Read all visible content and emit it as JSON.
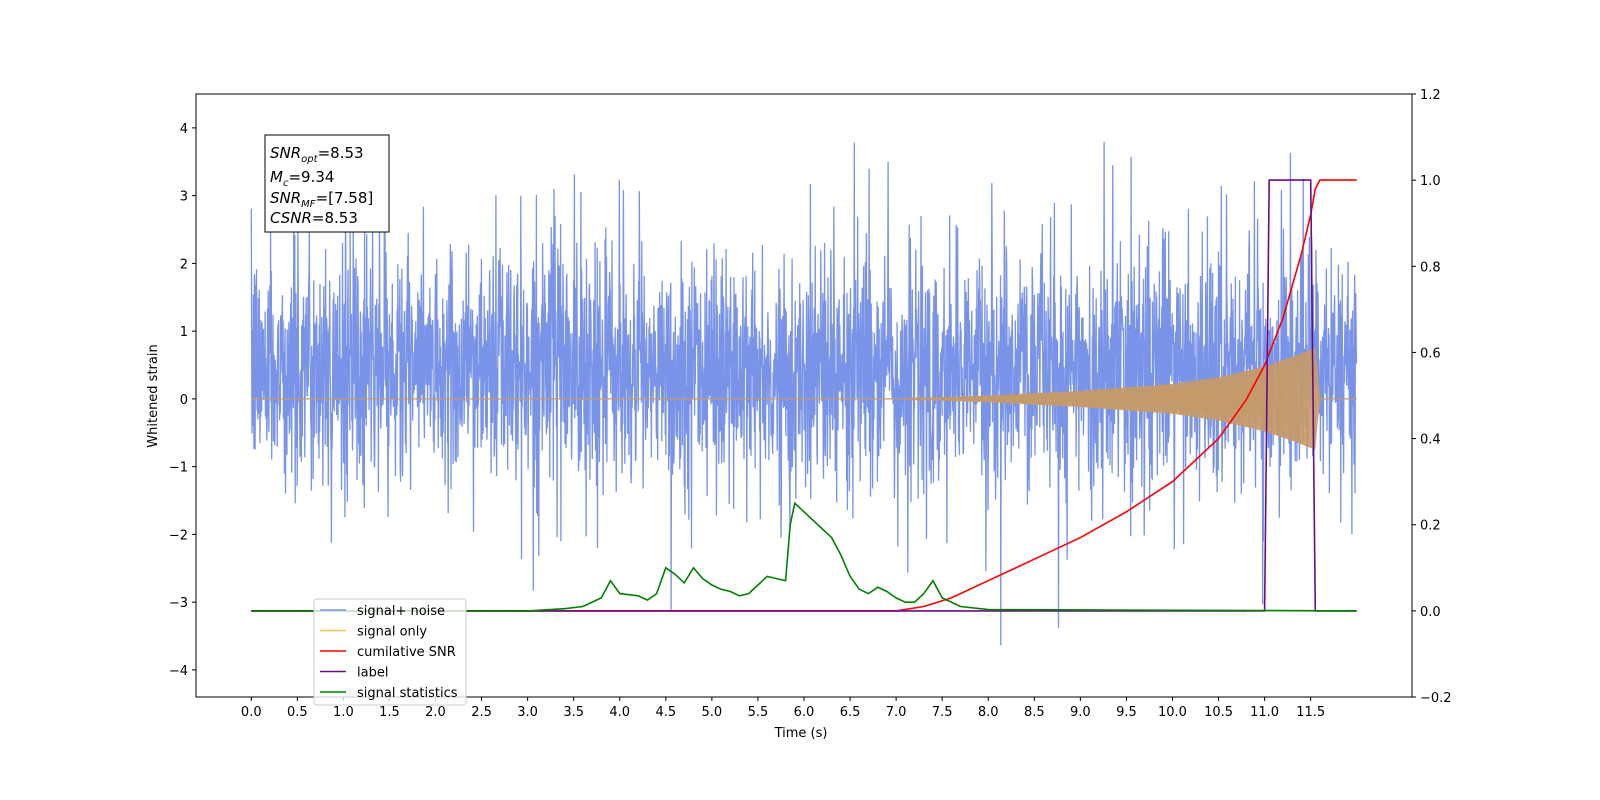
{
  "chart_data": {
    "type": "line",
    "xlabel": "Time (s)",
    "ylabel_left": "Whitened strain",
    "xlim": [
      -0.6,
      12.6
    ],
    "ylim_left": [
      -4.4,
      4.5
    ],
    "ylim_right": [
      -0.2,
      1.2
    ],
    "x_ticks": [
      "0.0",
      "0.5",
      "1.0",
      "1.5",
      "2.0",
      "2.5",
      "3.0",
      "3.5",
      "4.0",
      "4.5",
      "5.0",
      "5.5",
      "6.0",
      "6.5",
      "7.0",
      "7.5",
      "8.0",
      "8.5",
      "9.0",
      "9.5",
      "10.0",
      "10.5",
      "11.0",
      "11.5"
    ],
    "y_ticks_left": [
      "−4",
      "−3",
      "−2",
      "−1",
      "0",
      "1",
      "2",
      "3",
      "4"
    ],
    "y_ticks_right": [
      "−0.2",
      "0.0",
      "0.2",
      "0.4",
      "0.6",
      "0.8",
      "1.0",
      "1.2"
    ],
    "annotation": {
      "snr_opt": {
        "sym": "SNR",
        "sub": "opt",
        "val": "=8.53"
      },
      "mc": {
        "sym": "M",
        "sub": "c",
        "val": "=9.34"
      },
      "snr_mf": {
        "sym": "SNR",
        "sub": "MF",
        "val": "=[7.58]"
      },
      "csnr": {
        "sym": "CSNR",
        "sub": "",
        "val": "=8.53"
      }
    },
    "legend": {
      "position": "lower-left",
      "items": [
        {
          "label": "signal+ noise",
          "color": "#7893e8"
        },
        {
          "label": "signal only",
          "color": "#ffc45e"
        },
        {
          "label": "cumilative SNR",
          "color": "#ff0000"
        },
        {
          "label": "label",
          "color": "#6a0d83"
        },
        {
          "label": "signal statistics",
          "color": "#008000"
        }
      ]
    },
    "series": [
      {
        "name": "signal+ noise",
        "axis": "left",
        "color": "#7893e8",
        "description_range": [
          -1.5,
          2.5
        ]
      },
      {
        "name": "signal only",
        "axis": "left",
        "color": "#c49a6c",
        "envelope": {
          "x": [
            0.0,
            7.0,
            8.0,
            9.0,
            10.0,
            10.5,
            11.0,
            11.3,
            11.55,
            11.6,
            12.0
          ],
          "amp": [
            0.0,
            0.0,
            0.05,
            0.12,
            0.22,
            0.32,
            0.48,
            0.62,
            0.75,
            0.0,
            0.0
          ]
        }
      },
      {
        "name": "cumilative SNR",
        "axis": "right",
        "color": "#ff0000",
        "x": [
          0.0,
          7.0,
          7.3,
          7.6,
          8.0,
          8.5,
          9.0,
          9.5,
          10.0,
          10.5,
          10.8,
          11.0,
          11.2,
          11.4,
          11.5,
          11.55,
          11.6,
          12.0
        ],
        "y": [
          0.0,
          0.0,
          0.01,
          0.03,
          0.07,
          0.12,
          0.17,
          0.23,
          0.3,
          0.4,
          0.49,
          0.57,
          0.68,
          0.83,
          0.92,
          0.98,
          1.0,
          1.0
        ]
      },
      {
        "name": "label",
        "axis": "right",
        "color": "#6a0d83",
        "x": [
          0.0,
          11.0,
          11.05,
          11.5,
          11.55,
          12.0
        ],
        "y": [
          0.0,
          0.0,
          1.0,
          1.0,
          0.0,
          0.0
        ]
      },
      {
        "name": "signal statistics",
        "axis": "right",
        "color": "#008000",
        "x": [
          0.0,
          3.0,
          3.4,
          3.6,
          3.8,
          3.9,
          4.0,
          4.2,
          4.3,
          4.4,
          4.5,
          4.6,
          4.7,
          4.8,
          4.9,
          5.0,
          5.1,
          5.2,
          5.3,
          5.4,
          5.5,
          5.6,
          5.7,
          5.8,
          5.85,
          5.9,
          6.0,
          6.1,
          6.2,
          6.3,
          6.4,
          6.5,
          6.6,
          6.7,
          6.8,
          6.9,
          7.0,
          7.1,
          7.2,
          7.3,
          7.4,
          7.5,
          7.7,
          8.0,
          12.0
        ],
        "y": [
          0.0,
          0.0,
          0.005,
          0.01,
          0.03,
          0.07,
          0.04,
          0.035,
          0.025,
          0.04,
          0.1,
          0.085,
          0.065,
          0.1,
          0.075,
          0.06,
          0.05,
          0.045,
          0.035,
          0.04,
          0.06,
          0.08,
          0.075,
          0.07,
          0.2,
          0.25,
          0.23,
          0.21,
          0.19,
          0.17,
          0.13,
          0.08,
          0.05,
          0.04,
          0.055,
          0.045,
          0.03,
          0.02,
          0.02,
          0.04,
          0.07,
          0.03,
          0.01,
          0.003,
          0.0
        ]
      }
    ]
  }
}
